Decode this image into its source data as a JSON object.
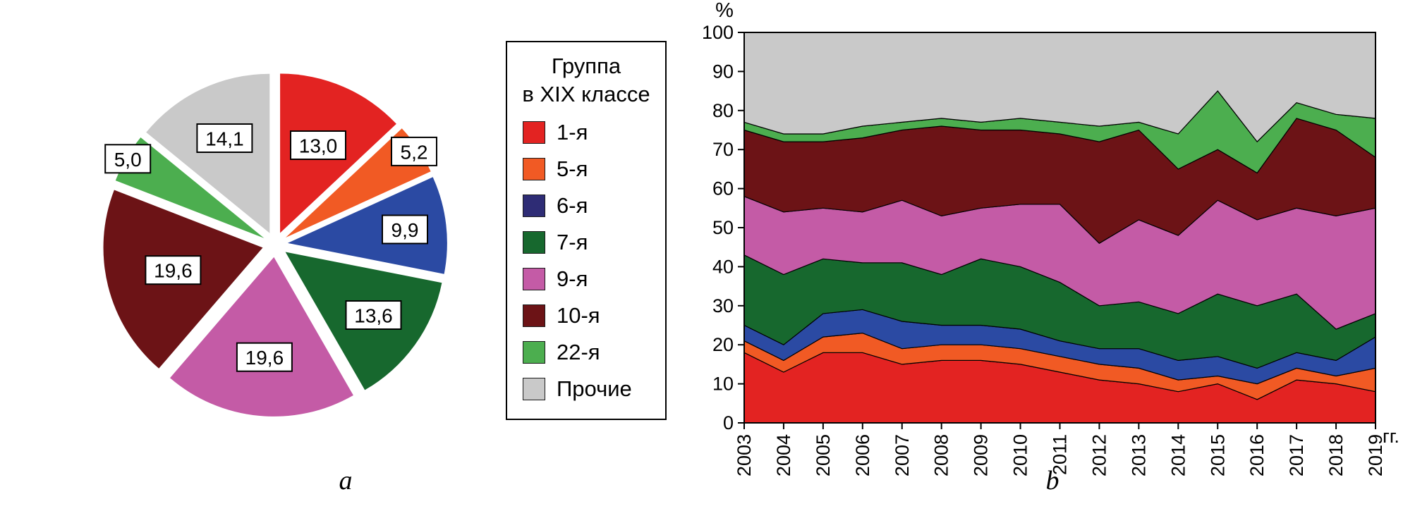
{
  "figure": {
    "panel_a_label": "a",
    "panel_b_label": "b"
  },
  "legend": {
    "title_line1": "Группа",
    "title_line2": "в XIX классе",
    "items": [
      {
        "label": "1-я",
        "color": "#e32322"
      },
      {
        "label": "5-я",
        "color": "#f15a24"
      },
      {
        "label": "6-я",
        "color": "#2e2c75"
      },
      {
        "label": "7-я",
        "color": "#17682e"
      },
      {
        "label": "9-я",
        "color": "#c45ba6"
      },
      {
        "label": "10-я",
        "color": "#6c1316"
      },
      {
        "label": "22-я",
        "color": "#4cae4f"
      },
      {
        "label": "Прочие",
        "color": "#c9c9c9"
      }
    ]
  },
  "chart_data": [
    {
      "type": "pie",
      "title": "",
      "labels": [
        "1-я",
        "5-я",
        "6-я",
        "7-я",
        "9-я",
        "10-я",
        "22-я",
        "Прочие"
      ],
      "values": [
        13.0,
        5.2,
        9.9,
        13.6,
        19.6,
        19.6,
        5.0,
        14.1
      ],
      "value_labels": [
        "13,0",
        "5,2",
        "9,9",
        "13,6",
        "19,6",
        "19,6",
        "5,0",
        "14,1"
      ],
      "colors": [
        "#e32322",
        "#f15a24",
        "#2b4aa3",
        "#17682e",
        "#c45ba6",
        "#6c1316",
        "#4cae4f",
        "#c9c9c9"
      ],
      "start_angle_deg": 0,
      "direction": "clockwise",
      "exploded": true
    },
    {
      "type": "area",
      "stacked": true,
      "title": "",
      "ylabel": "%",
      "xlabel": "гг.",
      "x": [
        "2003",
        "2004",
        "2005",
        "2006",
        "2007",
        "2008",
        "2009",
        "2010",
        "2011",
        "2012",
        "2013",
        "2014",
        "2015",
        "2016",
        "2017",
        "2018",
        "2019"
      ],
      "ylim": [
        0,
        100
      ],
      "ytick_step": 10,
      "grid": false,
      "legend_position": "none",
      "series": [
        {
          "name": "1-я",
          "color": "#e32322",
          "values": [
            18,
            13,
            18,
            18,
            15,
            16,
            16,
            15,
            13,
            11,
            10,
            8,
            10,
            6,
            11,
            10,
            8
          ]
        },
        {
          "name": "5-я",
          "color": "#f15a24",
          "values": [
            3,
            3,
            4,
            5,
            4,
            4,
            4,
            4,
            4,
            4,
            4,
            3,
            2,
            4,
            3,
            2,
            6
          ]
        },
        {
          "name": "6-я",
          "color": "#2b4aa3",
          "values": [
            4,
            4,
            6,
            6,
            7,
            5,
            5,
            5,
            4,
            4,
            5,
            5,
            5,
            4,
            4,
            4,
            8
          ]
        },
        {
          "name": "7-я",
          "color": "#17682e",
          "values": [
            18,
            18,
            14,
            12,
            15,
            13,
            17,
            16,
            15,
            11,
            12,
            12,
            16,
            16,
            15,
            8,
            6
          ]
        },
        {
          "name": "9-я",
          "color": "#c45ba6",
          "values": [
            15,
            16,
            13,
            13,
            16,
            15,
            13,
            16,
            20,
            16,
            21,
            20,
            24,
            22,
            22,
            29,
            27
          ]
        },
        {
          "name": "10-я",
          "color": "#6c1316",
          "values": [
            17,
            18,
            17,
            19,
            18,
            23,
            20,
            19,
            18,
            26,
            23,
            17,
            13,
            12,
            23,
            22,
            13
          ]
        },
        {
          "name": "22-я",
          "color": "#4cae4f",
          "values": [
            2,
            2,
            2,
            3,
            2,
            2,
            2,
            3,
            3,
            4,
            2,
            9,
            15,
            8,
            4,
            4,
            10
          ]
        },
        {
          "name": "Прочие",
          "color": "#c9c9c9",
          "values": [
            23,
            26,
            26,
            24,
            23,
            22,
            23,
            22,
            23,
            24,
            23,
            26,
            15,
            28,
            18,
            21,
            22
          ]
        }
      ]
    }
  ]
}
